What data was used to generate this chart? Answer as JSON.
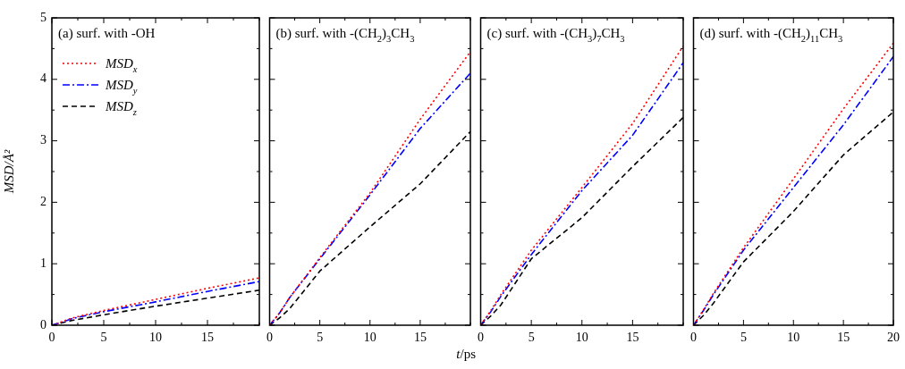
{
  "chart_data": [
    {
      "type": "line",
      "title": "(a) surf. with -OH",
      "ylabel": "MSD/Å²",
      "legend": "top left",
      "x": [
        0,
        1,
        2,
        5,
        10,
        15,
        20
      ],
      "xlim": [
        0,
        20
      ],
      "ylim": [
        0,
        5
      ],
      "xticks": [
        0,
        {
          "value": 2.5,
          "label": null
        },
        5,
        {
          "value": 7.5,
          "label": null
        },
        10,
        {
          "value": 12.5,
          "label": null
        },
        15,
        {
          "value": 17.5,
          "label": null
        },
        {
          "value": 20,
          "label": null
        }
      ],
      "yticks": [
        0,
        {
          "value": 0.5,
          "label": null
        },
        1,
        {
          "value": 1.5,
          "label": null
        },
        2,
        {
          "value": 2.5,
          "label": null
        },
        3,
        {
          "value": 3.5,
          "label": null
        },
        4,
        {
          "value": 4.5,
          "label": null
        },
        5
      ],
      "series": [
        {
          "name": "MSD$_{x}$",
          "color": "#ff0000",
          "line_style": "dotted",
          "values": [
            0,
            0.06,
            0.12,
            0.24,
            0.42,
            0.6,
            0.77
          ]
        },
        {
          "name": "MSD$_{y}$",
          "color": "#0000ff",
          "line_style": "dashdot",
          "values": [
            0,
            0.05,
            0.11,
            0.22,
            0.38,
            0.55,
            0.71
          ]
        },
        {
          "name": "MSD$_{z}$",
          "color": "#000000",
          "line_style": "dashed",
          "values": [
            0,
            0.04,
            0.08,
            0.17,
            0.31,
            0.44,
            0.57
          ]
        }
      ]
    },
    {
      "type": "line",
      "title": "(b) surf. with -(CH$_{2}$)$_{3}$CH$_{3}$",
      "xlabel": "t/ps",
      "tick_labels": "x",
      "x": [
        0,
        1,
        2,
        5,
        10,
        15,
        20
      ],
      "xlim": [
        0,
        20
      ],
      "ylim": [
        0,
        5
      ],
      "xticks": [
        0,
        {
          "value": 2.5,
          "label": null
        },
        5,
        {
          "value": 7.5,
          "label": null
        },
        10,
        {
          "value": 12.5,
          "label": null
        },
        15,
        {
          "value": 17.5,
          "label": null
        },
        {
          "value": 20,
          "label": null
        }
      ],
      "yticks": [
        0,
        {
          "value": 0.5,
          "label": null
        },
        1,
        {
          "value": 1.5,
          "label": null
        },
        2,
        {
          "value": 2.5,
          "label": null
        },
        3,
        {
          "value": 3.5,
          "label": null
        },
        4,
        {
          "value": 4.5,
          "label": null
        },
        5
      ],
      "series": [
        {
          "color": "#ff0000",
          "line_style": "dotted",
          "values": [
            0,
            0.2,
            0.45,
            1.1,
            2.15,
            3.35,
            4.45
          ]
        },
        {
          "color": "#0000ff",
          "line_style": "dashdot",
          "values": [
            0,
            0.2,
            0.45,
            1.08,
            2.12,
            3.2,
            4.1
          ]
        },
        {
          "color": "#000000",
          "line_style": "dashed",
          "values": [
            0,
            0.12,
            0.27,
            0.88,
            1.6,
            2.3,
            3.15
          ]
        }
      ]
    },
    {
      "type": "line",
      "title": "(c) surf. with -(CH$_{3}$)$_{7}$CH$_{3}$",
      "tick_labels": "x",
      "x": [
        0,
        1,
        2,
        5,
        10,
        15,
        20
      ],
      "xlim": [
        0,
        20
      ],
      "ylim": [
        0,
        5
      ],
      "xticks": [
        0,
        {
          "value": 2.5,
          "label": null
        },
        5,
        {
          "value": 7.5,
          "label": null
        },
        10,
        {
          "value": 12.5,
          "label": null
        },
        15,
        {
          "value": 17.5,
          "label": null
        },
        {
          "value": 20,
          "label": null
        }
      ],
      "yticks": [
        0,
        {
          "value": 0.5,
          "label": null
        },
        1,
        {
          "value": 1.5,
          "label": null
        },
        2,
        {
          "value": 2.5,
          "label": null
        },
        3,
        {
          "value": 3.5,
          "label": null
        },
        4,
        {
          "value": 4.5,
          "label": null
        },
        5
      ],
      "series": [
        {
          "color": "#ff0000",
          "line_style": "dotted",
          "values": [
            0,
            0.24,
            0.5,
            1.22,
            2.24,
            3.28,
            4.54
          ]
        },
        {
          "color": "#0000ff",
          "line_style": "dashdot",
          "values": [
            0,
            0.22,
            0.47,
            1.15,
            2.19,
            3.09,
            4.27
          ]
        },
        {
          "color": "#000000",
          "line_style": "dashed",
          "values": [
            0,
            0.15,
            0.33,
            1.08,
            1.75,
            2.58,
            3.38
          ]
        }
      ]
    },
    {
      "type": "line",
      "title": "(d) surf. with -(CH$_{2}$)$_{11}$CH$_{3}$",
      "tick_labels": "x",
      "x": [
        0,
        1,
        2,
        5,
        10,
        15,
        20
      ],
      "xlim": [
        0,
        20
      ],
      "ylim": [
        0,
        5
      ],
      "xticks": [
        0,
        {
          "value": 2.5,
          "label": null
        },
        5,
        {
          "value": 7.5,
          "label": null
        },
        10,
        {
          "value": 12.5,
          "label": null
        },
        15,
        {
          "value": 17.5,
          "label": null
        },
        20
      ],
      "yticks": [
        0,
        {
          "value": 0.5,
          "label": null
        },
        1,
        {
          "value": 1.5,
          "label": null
        },
        2,
        {
          "value": 2.5,
          "label": null
        },
        3,
        {
          "value": 3.5,
          "label": null
        },
        4,
        {
          "value": 4.5,
          "label": null
        },
        5
      ],
      "series": [
        {
          "color": "#ff0000",
          "line_style": "dotted",
          "values": [
            0,
            0.25,
            0.52,
            1.26,
            2.38,
            3.52,
            4.59
          ]
        },
        {
          "color": "#0000ff",
          "line_style": "dashdot",
          "values": [
            0,
            0.24,
            0.5,
            1.22,
            2.24,
            3.26,
            4.37
          ]
        },
        {
          "color": "#000000",
          "line_style": "dashed",
          "values": [
            0,
            0.16,
            0.36,
            1.03,
            1.85,
            2.77,
            3.47
          ]
        }
      ]
    }
  ]
}
